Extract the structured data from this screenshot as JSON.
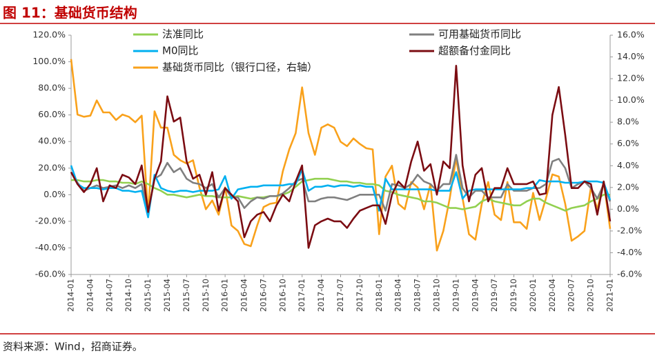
{
  "chart_data": {
    "type": "line",
    "title": "图 11：基础货币结构",
    "source": "资料来源：Wind，招商证券。",
    "categories": [
      "2014-01",
      null,
      null,
      "2014-04",
      null,
      null,
      "2014-07",
      null,
      null,
      "2014-10",
      null,
      null,
      "2015-01",
      null,
      null,
      "2015-04",
      null,
      null,
      "2015-07",
      null,
      null,
      "2015-10",
      null,
      null,
      "2016-01",
      null,
      null,
      "2016-04",
      null,
      null,
      "2016-07",
      null,
      null,
      "2016-10",
      null,
      null,
      "2017-01",
      null,
      null,
      "2017-04",
      null,
      null,
      "2017-07",
      null,
      null,
      "2017-10",
      null,
      null,
      "2018-01",
      null,
      null,
      "2018-04",
      null,
      null,
      "2018-07",
      null,
      null,
      "2018-10",
      null,
      null,
      "2019-01",
      null,
      null,
      "2019-04",
      null,
      null,
      "2019-07",
      null,
      null,
      "2019-10",
      null,
      null,
      "2020-01",
      null,
      null,
      "2020-04",
      null,
      null,
      "2020-07",
      null,
      null,
      "2020-10",
      null,
      null,
      "2021-01"
    ],
    "ylim": [
      -60,
      120
    ],
    "yticks": [
      {
        "value": -60,
        "label": "-60.0%"
      },
      {
        "value": -40,
        "label": "-40.0%"
      },
      {
        "value": -20,
        "label": "-20.0%"
      },
      {
        "value": 0,
        "label": "0.0%"
      },
      {
        "value": 20,
        "label": "20.0%"
      },
      {
        "value": 40,
        "label": "40.0%"
      },
      {
        "value": 60,
        "label": "60.0%"
      },
      {
        "value": 80,
        "label": "80.0%"
      },
      {
        "value": 100,
        "label": "100.0%"
      },
      {
        "value": 120,
        "label": "120.0%"
      }
    ],
    "y2lim": [
      -6,
      16
    ],
    "y2ticks": [
      {
        "value": -6,
        "label": "-6.0%"
      },
      {
        "value": -4,
        "label": "-4.0%"
      },
      {
        "value": -2,
        "label": "-2.0%"
      },
      {
        "value": 0,
        "label": "0.0%"
      },
      {
        "value": 2,
        "label": "2.0%"
      },
      {
        "value": 4,
        "label": "4.0%"
      },
      {
        "value": 6,
        "label": "6.0%"
      },
      {
        "value": 8,
        "label": "8.0%"
      },
      {
        "value": 10,
        "label": "10.0%"
      },
      {
        "value": 12,
        "label": "12.0%"
      },
      {
        "value": 14,
        "label": "14.0%"
      },
      {
        "value": 16,
        "label": "16.0%"
      }
    ],
    "series": [
      {
        "name": "法准同比",
        "color": "#92d050",
        "values": [
          11,
          11,
          10,
          10,
          11,
          11,
          10,
          10,
          9,
          9,
          8,
          10,
          8,
          5,
          3,
          0,
          0,
          -1,
          -2,
          -1,
          0,
          -1,
          -1,
          -2,
          -2,
          -2,
          -1,
          -2,
          -3,
          -2,
          -2,
          -1,
          -1,
          0,
          2,
          6,
          10,
          11,
          12,
          12,
          12,
          11,
          10,
          10,
          9,
          9,
          8,
          8,
          7,
          3,
          2,
          0,
          -1,
          -2,
          -3,
          -5,
          -5,
          -6,
          -8,
          -10,
          -10,
          -11,
          -10,
          -9,
          -5,
          -3,
          -5,
          -6,
          -7,
          -8,
          -8,
          -5,
          -3,
          -3,
          -6,
          -8,
          -10,
          -12,
          -10,
          -9,
          -8,
          -5,
          -3,
          0,
          0
        ]
      },
      {
        "name": "可用基础货币同比",
        "color": "#7f7f7f",
        "values": [
          17,
          9,
          3,
          5,
          7,
          5,
          6,
          7,
          5,
          7,
          5,
          8,
          -13,
          12,
          15,
          24,
          17,
          20,
          12,
          9,
          8,
          5,
          8,
          -2,
          5,
          -2,
          -2,
          -10,
          -5,
          -2,
          -3,
          -1,
          -1,
          1,
          5,
          10,
          12,
          -5,
          -5,
          -3,
          -2,
          -2,
          -3,
          -4,
          -2,
          0,
          0,
          0,
          0,
          -12,
          8,
          7,
          5,
          8,
          15,
          10,
          8,
          3,
          8,
          8,
          30,
          5,
          -2,
          3,
          3,
          -2,
          -2,
          -2,
          8,
          3,
          3,
          3,
          5,
          5,
          8,
          25,
          27,
          20,
          5,
          8,
          10,
          5,
          -3,
          8,
          -5
        ]
      },
      {
        "name": "M0同比",
        "color": "#00b0f0",
        "values": [
          22,
          8,
          5,
          5,
          5,
          4,
          5,
          5,
          3,
          3,
          2,
          3,
          -17,
          15,
          5,
          3,
          2,
          3,
          3,
          2,
          3,
          3,
          3,
          4,
          14,
          -3,
          4,
          5,
          6,
          6,
          7,
          7,
          7,
          7,
          8,
          8,
          19,
          3,
          6,
          6,
          7,
          6,
          7,
          7,
          6,
          7,
          6,
          6,
          -12,
          12,
          4,
          4,
          4,
          4,
          4,
          4,
          4,
          3,
          3,
          3,
          17,
          -3,
          3,
          4,
          4,
          4,
          4,
          4,
          4,
          4,
          4,
          5,
          5,
          11,
          10,
          10,
          10,
          9,
          9,
          9,
          10,
          10,
          10,
          9,
          -4
        ]
      },
      {
        "name": "超额备付金同比",
        "color": "#7b0c12",
        "values": [
          17,
          8,
          2,
          8,
          20,
          -5,
          7,
          5,
          15,
          13,
          8,
          22,
          -13,
          12,
          25,
          74,
          55,
          58,
          25,
          12,
          15,
          0,
          17,
          -12,
          5,
          0,
          -5,
          -32,
          -20,
          -15,
          -13,
          -20,
          -8,
          0,
          -5,
          10,
          22,
          -40,
          -23,
          -20,
          -18,
          -20,
          -20,
          -25,
          -18,
          -12,
          -10,
          -8,
          -8,
          -22,
          0,
          10,
          5,
          25,
          40,
          18,
          23,
          0,
          25,
          20,
          97,
          22,
          -5,
          15,
          20,
          -5,
          5,
          5,
          20,
          8,
          8,
          8,
          10,
          0,
          1,
          60,
          81,
          45,
          5,
          5,
          10,
          8,
          -15,
          10,
          -20
        ]
      },
      {
        "name": "基础货币同比（银行口径，右轴）",
        "color": "#f9a11b",
        "axis": "y2",
        "values": [
          13.8,
          8.7,
          8.5,
          8.6,
          10.0,
          8.9,
          8.9,
          8.2,
          8.7,
          8.5,
          8.0,
          8.6,
          -0.5,
          9.0,
          7.5,
          7.5,
          5.0,
          4.5,
          4.2,
          4.5,
          2.0,
          0.0,
          0.8,
          -0.5,
          2.0,
          -1.5,
          -2.0,
          -3.2,
          -3.4,
          -1.5,
          0.2,
          0.5,
          0.6,
          3.5,
          5.5,
          7.0,
          11.2,
          7.0,
          5.0,
          7.5,
          7.8,
          7.5,
          6.2,
          5.8,
          6.5,
          6.0,
          5.6,
          5.5,
          -2.3,
          3.0,
          4.0,
          0.5,
          0.0,
          2.5,
          2.0,
          0.0,
          2.3,
          -3.8,
          -2.0,
          1.0,
          4.7,
          1.0,
          -2.3,
          -2.8,
          0.5,
          2.5,
          -0.5,
          -1.0,
          2.5,
          -1.2,
          -1.2,
          -1.8,
          1.5,
          -1.0,
          1.0,
          3.2,
          3.0,
          0.5,
          -2.9,
          -2.5,
          -2.0,
          2.0,
          0.0,
          2.5,
          -1.8
        ]
      }
    ]
  }
}
